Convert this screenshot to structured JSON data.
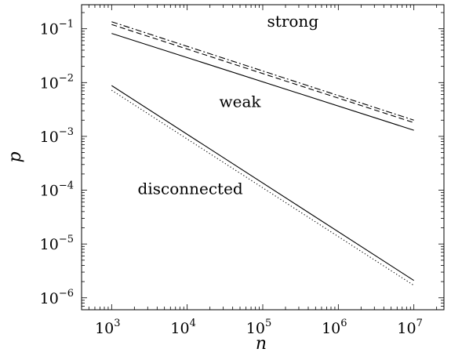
{
  "chart_data": {
    "type": "line",
    "xlabel": "n",
    "ylabel": "p",
    "x_scale": "log",
    "y_scale": "log",
    "xlim": [
      400,
      25000000
    ],
    "ylim": [
      6e-07,
      0.28
    ],
    "grid": false,
    "x_ticks": [
      {
        "base": "10",
        "exp": "3",
        "value": 1000
      },
      {
        "base": "10",
        "exp": "4",
        "value": 10000
      },
      {
        "base": "10",
        "exp": "5",
        "value": 100000
      },
      {
        "base": "10",
        "exp": "6",
        "value": 1000000
      },
      {
        "base": "10",
        "exp": "7",
        "value": 10000000
      }
    ],
    "y_ticks": [
      {
        "base": "10",
        "exp": "−1",
        "value": 0.1
      },
      {
        "base": "10",
        "exp": "−2",
        "value": 0.01
      },
      {
        "base": "10",
        "exp": "−3",
        "value": 0.001
      },
      {
        "base": "10",
        "exp": "−4",
        "value": 0.0001
      },
      {
        "base": "10",
        "exp": "−5",
        "value": 1e-05
      },
      {
        "base": "10",
        "exp": "−6",
        "value": 1e-06
      }
    ],
    "series": [
      {
        "style": "solid",
        "x": [
          1000,
          10000000
        ],
        "y": [
          0.082,
          0.0013
        ]
      },
      {
        "style": "dashed",
        "x": [
          1000,
          10000000
        ],
        "y": [
          0.12,
          0.0018
        ]
      },
      {
        "style": "dashdot",
        "x": [
          1000,
          10000000
        ],
        "y": [
          0.135,
          0.002
        ]
      },
      {
        "style": "solid",
        "x": [
          1000,
          10000000
        ],
        "y": [
          0.0088,
          2.1e-06
        ]
      },
      {
        "style": "dotted",
        "x": [
          1000,
          10000000
        ],
        "y": [
          0.0072,
          1.7e-06
        ]
      }
    ],
    "annotations": [
      {
        "text": "strong",
        "x": 250000,
        "y": 0.11
      },
      {
        "text": "weak",
        "x": 50000,
        "y": 0.0035
      },
      {
        "text": "disconnected",
        "x": 11000,
        "y": 8.5e-05
      }
    ]
  }
}
